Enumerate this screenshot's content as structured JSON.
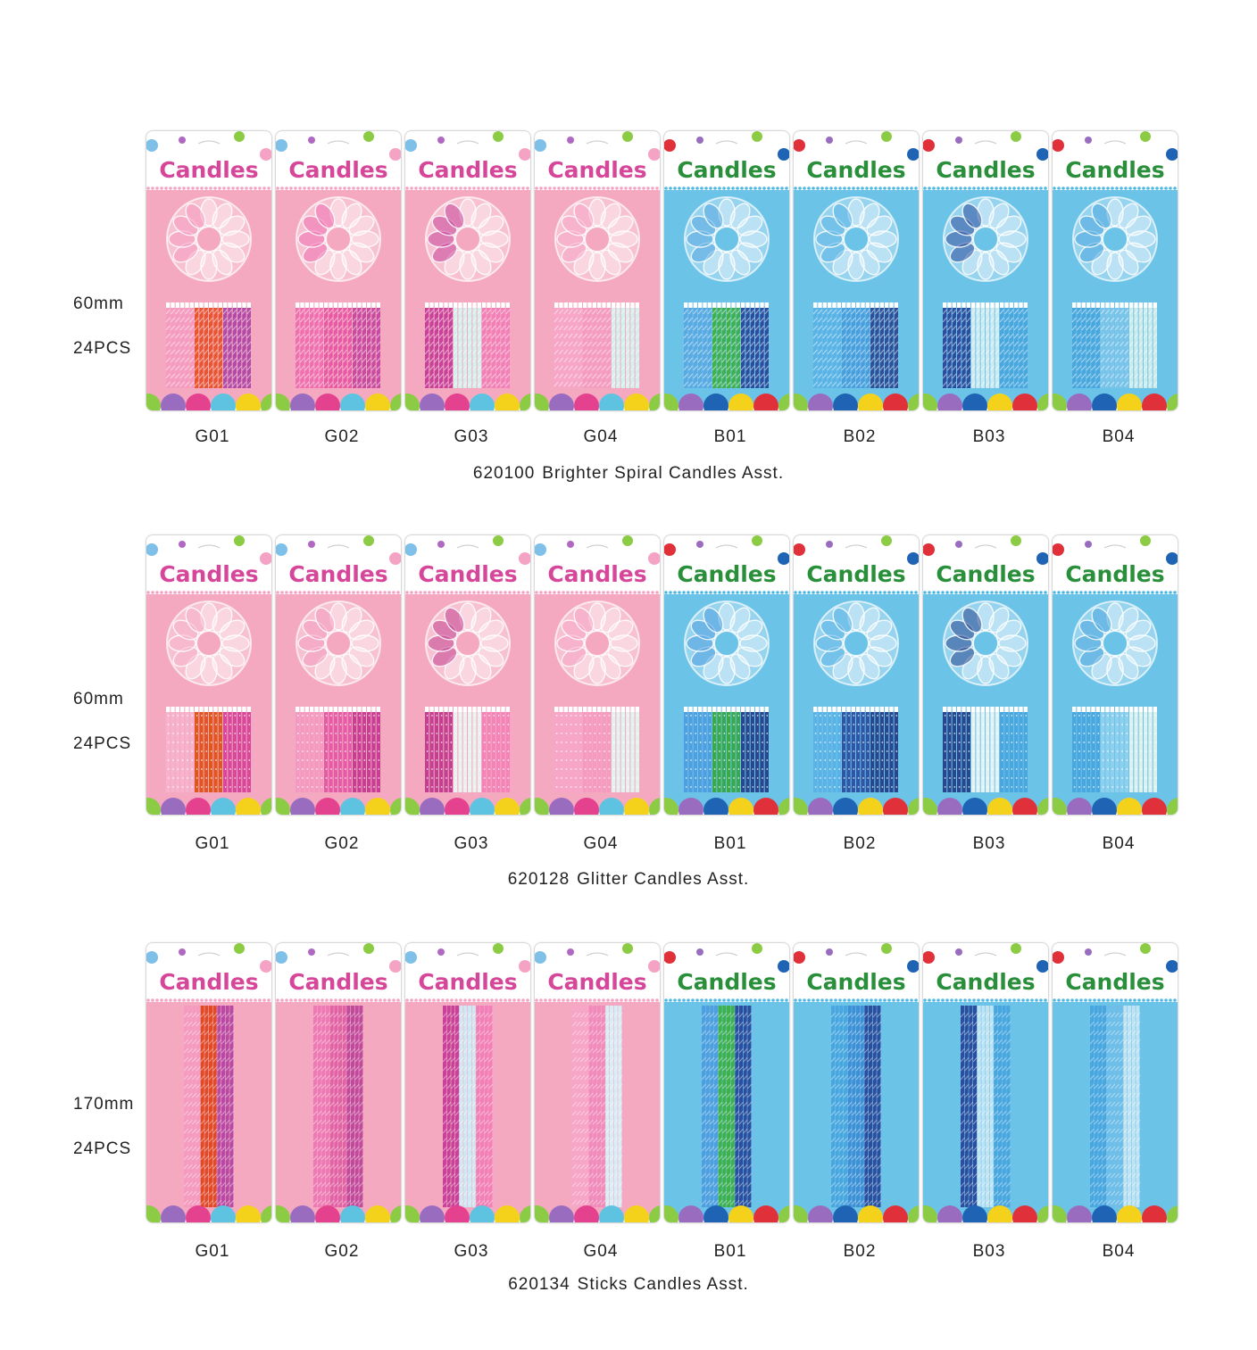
{
  "brand_text": "Candles",
  "colors": {
    "pink_panel": "#f4a9c0",
    "blue_panel": "#6cc3e8",
    "pink_dots": "#f4a3c4",
    "blue_dots": "#4fb9e6",
    "scallops": [
      "#8ccb44",
      "#9a6cc0",
      "#e4418e",
      "#5ec3e0",
      "#f4d21c",
      "#1f64b4",
      "#e0313b"
    ]
  },
  "sections": [
    {
      "size": "60mm",
      "pcs": "24PCS",
      "item_number": "620100",
      "name": "Brighter Spiral Candles Asst.",
      "variant": "spiral",
      "cards": [
        {
          "code": "G01",
          "theme": "pink",
          "candle_colors": [
            "#f59bc0",
            "#e8552f",
            "#b24aa6"
          ]
        },
        {
          "code": "G02",
          "theme": "pink",
          "candle_colors": [
            "#ef6fb0",
            "#e85aa3",
            "#c84ba0"
          ]
        },
        {
          "code": "G03",
          "theme": "pink",
          "candle_colors": [
            "#c9429a",
            "#d4efec",
            "#f27fb8"
          ]
        },
        {
          "code": "G04",
          "theme": "pink",
          "candle_colors": [
            "#f7a6c8",
            "#f59bc0",
            "#d4efec"
          ]
        },
        {
          "code": "B01",
          "theme": "blue",
          "candle_colors": [
            "#5aa9e2",
            "#3fb14a",
            "#2c4e9e"
          ]
        },
        {
          "code": "B02",
          "theme": "blue",
          "candle_colors": [
            "#5ab2e6",
            "#4a9ede",
            "#2f4f99"
          ]
        },
        {
          "code": "B03",
          "theme": "blue",
          "candle_colors": [
            "#2c4e9e",
            "#cdebf0",
            "#4aa6df"
          ]
        },
        {
          "code": "B04",
          "theme": "blue",
          "candle_colors": [
            "#4aa6df",
            "#7cc4ea",
            "#cdebeb"
          ]
        }
      ]
    },
    {
      "size": "60mm",
      "pcs": "24PCS",
      "item_number": "620128",
      "name": "Glitter Candles Asst.",
      "variant": "glitter",
      "cards": [
        {
          "code": "G01",
          "theme": "pink",
          "candle_colors": [
            "#f7b2cc",
            "#e0561e",
            "#d9479a"
          ]
        },
        {
          "code": "G02",
          "theme": "pink",
          "candle_colors": [
            "#f49ac0",
            "#e65ba6",
            "#c73e92"
          ]
        },
        {
          "code": "G03",
          "theme": "pink",
          "candle_colors": [
            "#c2408f",
            "#eaf1f0",
            "#f483b8"
          ]
        },
        {
          "code": "G04",
          "theme": "pink",
          "candle_colors": [
            "#f7a6c8",
            "#f59bc0",
            "#e2f3ef"
          ]
        },
        {
          "code": "B01",
          "theme": "blue",
          "candle_colors": [
            "#4f9fe0",
            "#3aa94a",
            "#27478f"
          ]
        },
        {
          "code": "B02",
          "theme": "blue",
          "candle_colors": [
            "#5ab2e6",
            "#2f56a6",
            "#27478f"
          ]
        },
        {
          "code": "B03",
          "theme": "blue",
          "candle_colors": [
            "#27478f",
            "#e3f2f4",
            "#4aa6df"
          ]
        },
        {
          "code": "B04",
          "theme": "blue",
          "candle_colors": [
            "#4aa6df",
            "#8fd0ee",
            "#dcf1ee"
          ]
        }
      ]
    },
    {
      "size": "170mm",
      "pcs": "24PCS",
      "item_number": "620134",
      "name": "Sticks Candles Asst.",
      "variant": "sticks",
      "cards": [
        {
          "code": "G01",
          "theme": "pink",
          "candle_colors": [
            "#f59bc0",
            "#e04a24",
            "#b84aa4"
          ]
        },
        {
          "code": "G02",
          "theme": "pink",
          "candle_colors": [
            "#ee7ab5",
            "#e163a6",
            "#c04a9c"
          ]
        },
        {
          "code": "G03",
          "theme": "pink",
          "candle_colors": [
            "#c9429a",
            "#cfe9f4",
            "#f27fb8"
          ]
        },
        {
          "code": "G04",
          "theme": "pink",
          "candle_colors": [
            "#f7a6c8",
            "#f08bbb",
            "#d8eef6"
          ]
        },
        {
          "code": "B01",
          "theme": "blue",
          "candle_colors": [
            "#4f9fe0",
            "#3fb14a",
            "#2c4e9e"
          ]
        },
        {
          "code": "B02",
          "theme": "blue",
          "candle_colors": [
            "#4aa6df",
            "#3f8fd6",
            "#2c4e9e"
          ]
        },
        {
          "code": "B03",
          "theme": "blue",
          "candle_colors": [
            "#2c4e9e",
            "#bfe3f3",
            "#4aa6df"
          ]
        },
        {
          "code": "B04",
          "theme": "blue",
          "candle_colors": [
            "#4aa6df",
            "#6fbde9",
            "#bfe3f3"
          ]
        }
      ]
    }
  ]
}
